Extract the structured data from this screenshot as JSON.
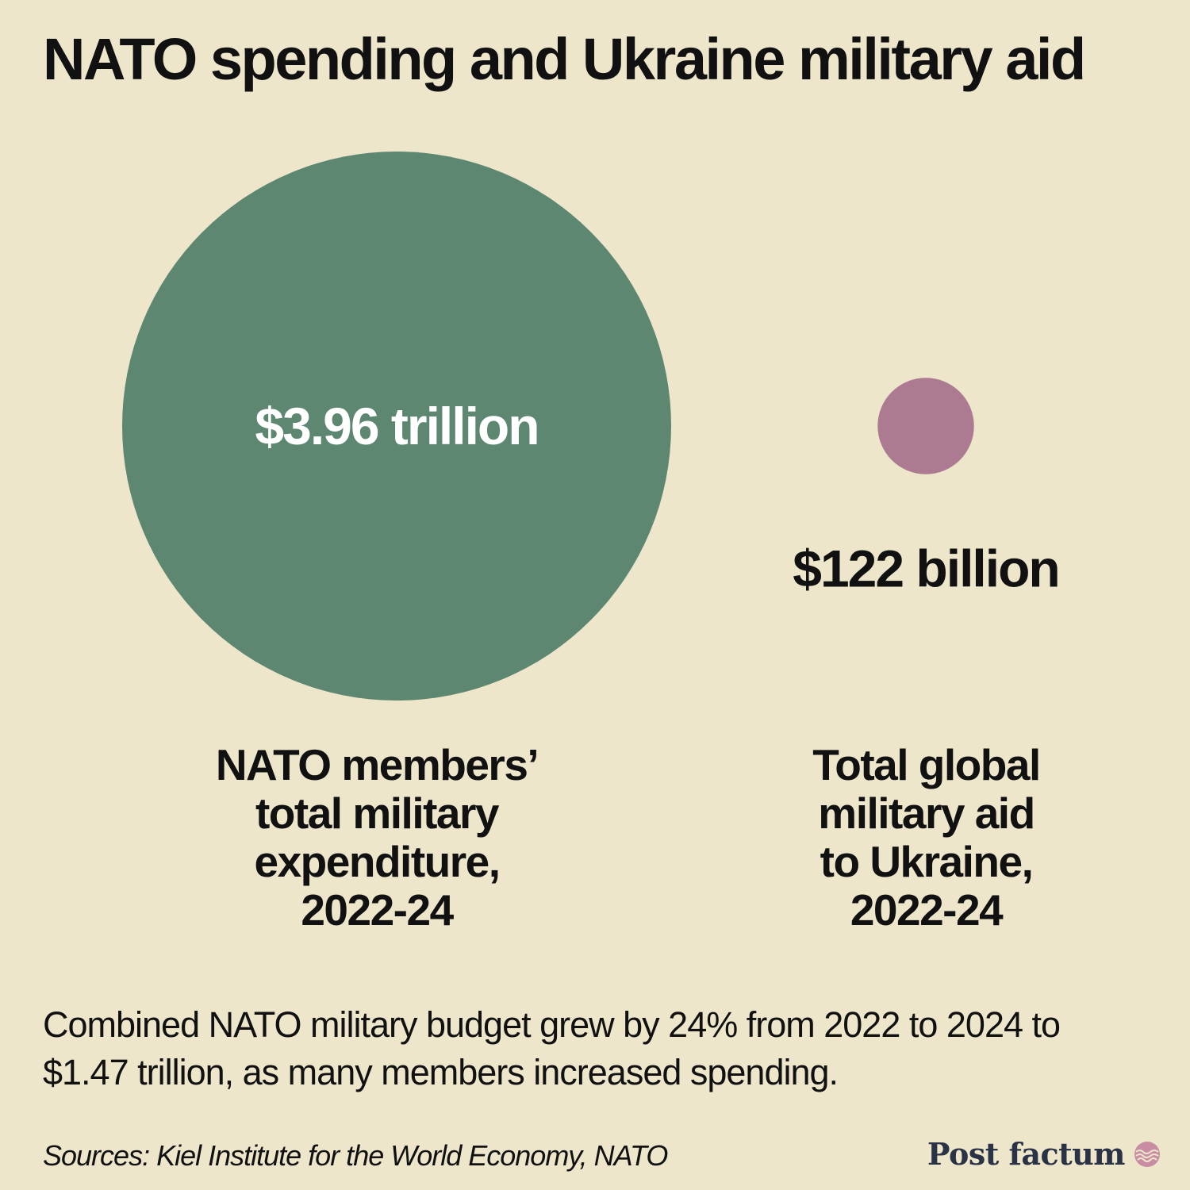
{
  "title": "NATO spending and Ukraine military aid",
  "chart_data": {
    "type": "bubble",
    "series": [
      {
        "value_usd_billion": 3960,
        "value_label": "$3.96 trillion",
        "label": "NATO members’\ntotal military\nexpenditure,\n2022-24",
        "color": "#5d8771",
        "label_color": "#ffffff"
      },
      {
        "value_usd_billion": 122,
        "value_label": "$122 billion",
        "label": "Total global\nmilitary aid\nto Ukraine,\n2022-24",
        "color": "#ac7b91",
        "label_color": "#111111"
      }
    ]
  },
  "note": "Combined NATO military budget grew by 24% from 2022 to 2024 to $1.47 trillion, as many members increased spending.",
  "sources": "Sources: Kiel Institute for the World Economy, NATO",
  "brand": {
    "name": "Post factum",
    "icon": "wave-logo-icon",
    "icon_color": "#c98da3"
  },
  "colors": {
    "background": "#ede6cb",
    "text": "#111111"
  }
}
